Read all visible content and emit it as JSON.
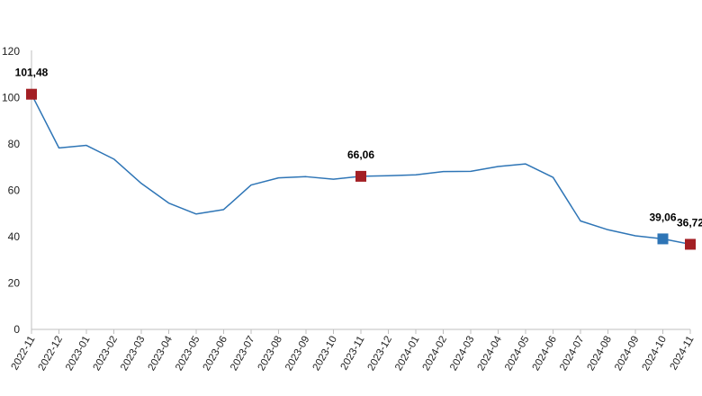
{
  "chart_data": {
    "type": "line",
    "categories": [
      "2022-11",
      "2022-12",
      "2023-01",
      "2023-02",
      "2023-03",
      "2023-04",
      "2023-05",
      "2023-06",
      "2023-07",
      "2023-08",
      "2023-09",
      "2023-10",
      "2023-11",
      "2023-12",
      "2024-01",
      "2024-02",
      "2024-03",
      "2024-04",
      "2024-05",
      "2024-06",
      "2024-07",
      "2024-08",
      "2024-09",
      "2024-10",
      "2024-11"
    ],
    "series": [
      {
        "values": [
          101.48,
          78.3,
          79.4,
          73.5,
          63.0,
          54.5,
          49.8,
          51.7,
          62.3,
          65.4,
          65.9,
          64.8,
          66.06,
          66.3,
          66.7,
          68.1,
          68.2,
          70.3,
          71.4,
          65.6,
          46.8,
          43.0,
          40.4,
          39.06,
          36.72
        ]
      }
    ],
    "ylim": [
      0,
      120
    ],
    "yticks": [
      0,
      20,
      40,
      60,
      80,
      100,
      120
    ],
    "grid": false,
    "legend": "none",
    "line_color": "#2e75b6",
    "annotations": [
      {
        "index": 0,
        "label": "101,48",
        "marker_color": "#a31f24"
      },
      {
        "index": 12,
        "label": "66,06",
        "marker_color": "#a31f24"
      },
      {
        "index": 23,
        "label": "39,06",
        "marker_color": "#2e75b6"
      },
      {
        "index": 24,
        "label": "36,72",
        "marker_color": "#a31f24"
      }
    ]
  }
}
